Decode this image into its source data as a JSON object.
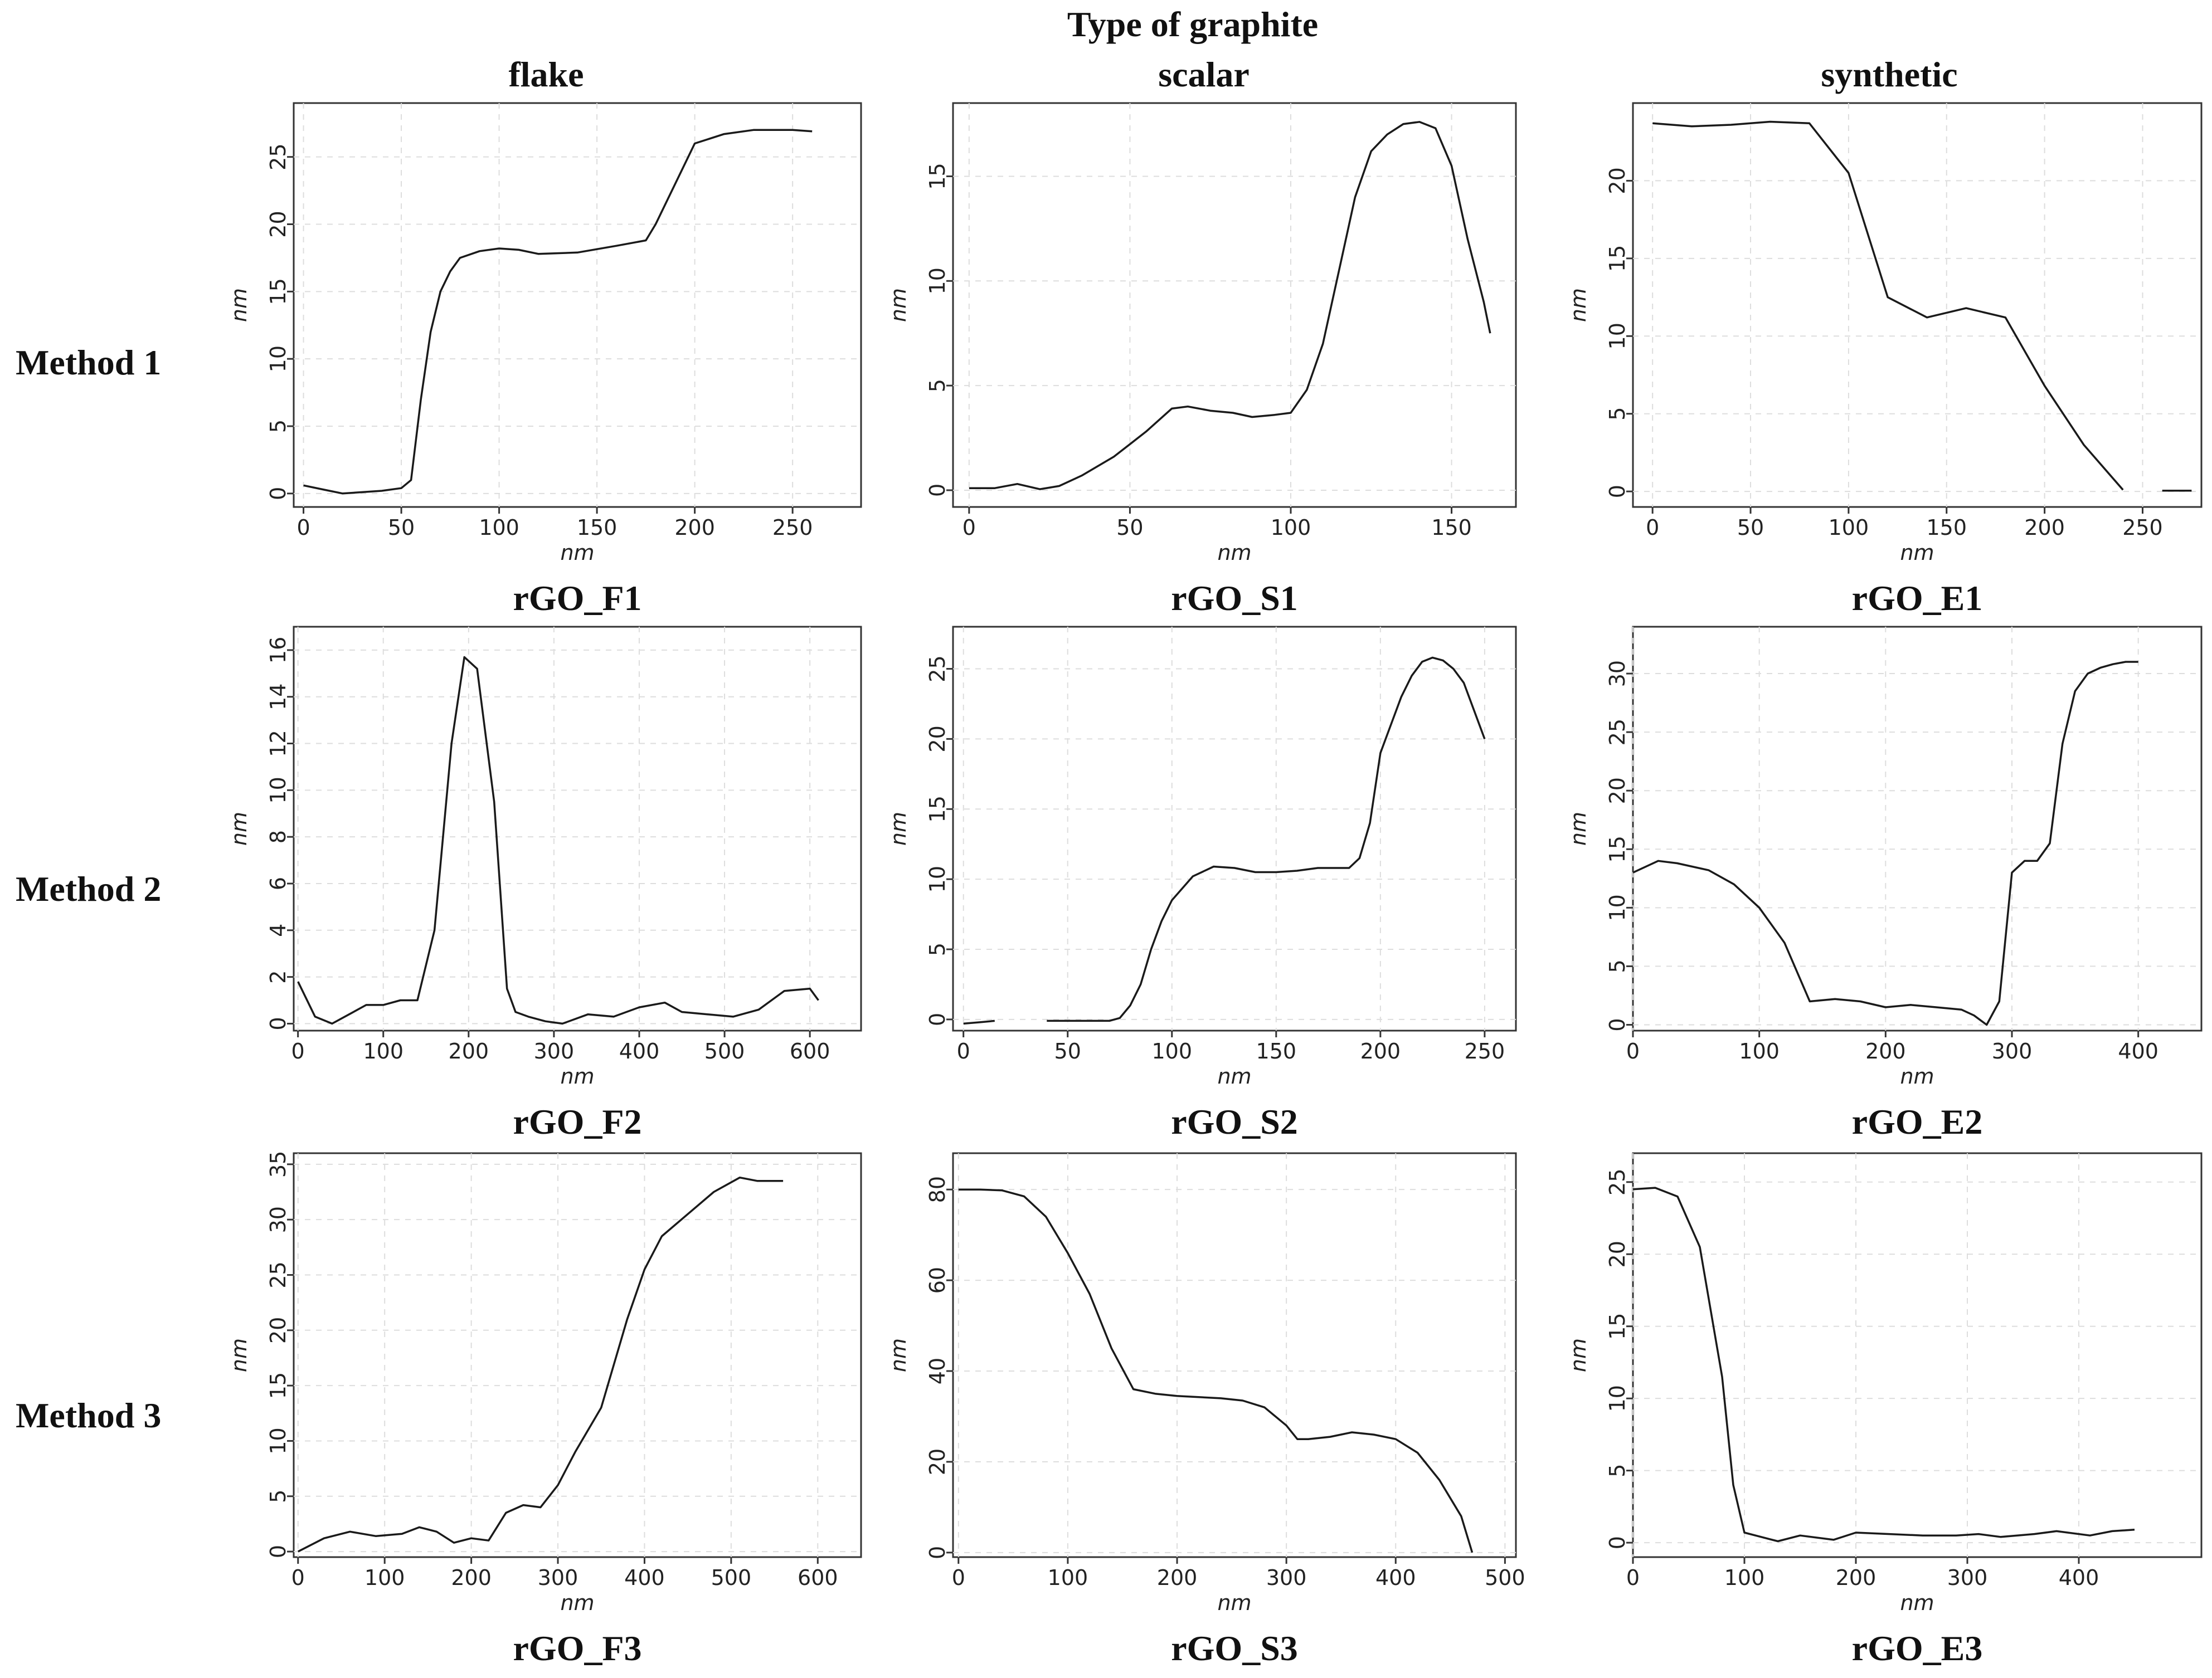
{
  "figure": {
    "column_header": "Type of graphite",
    "columns": [
      "flake",
      "scalar",
      "synthetic"
    ],
    "rows": [
      "Method 1",
      "Method 2",
      "Method 3"
    ],
    "line_color": "#1a1a1a"
  },
  "chart_data": [
    {
      "type": "line",
      "sample": "rGO_F1",
      "xlabel": "nm",
      "ylabel": "nm",
      "xlim": [
        -5,
        285
      ],
      "ylim": [
        -1,
        29
      ],
      "xticks": [
        0,
        50,
        100,
        150,
        200,
        250
      ],
      "yticks": [
        0,
        5,
        10,
        15,
        20,
        25
      ],
      "x": [
        0,
        10,
        20,
        30,
        40,
        50,
        55,
        60,
        65,
        70,
        75,
        80,
        90,
        100,
        110,
        120,
        140,
        160,
        175,
        180,
        190,
        200,
        215,
        230,
        250,
        260
      ],
      "y": [
        0.6,
        0.3,
        0,
        0.1,
        0.2,
        0.4,
        1,
        7,
        12,
        15,
        16.5,
        17.5,
        18,
        18.2,
        18.1,
        17.8,
        17.9,
        18.4,
        18.8,
        20,
        23,
        26,
        26.7,
        27,
        27,
        26.9
      ]
    },
    {
      "type": "line",
      "sample": "rGO_S1",
      "xlabel": "nm",
      "ylabel": "nm",
      "xlim": [
        -5,
        170
      ],
      "ylim": [
        -0.8,
        18.5
      ],
      "xticks": [
        0,
        50,
        100,
        150
      ],
      "yticks": [
        0,
        5,
        10,
        15
      ],
      "x": [
        0,
        8,
        15,
        22,
        28,
        35,
        45,
        55,
        63,
        68,
        75,
        82,
        88,
        95,
        100,
        105,
        110,
        115,
        120,
        125,
        130,
        135,
        140,
        145,
        150,
        155,
        160,
        162
      ],
      "y": [
        0.1,
        0.1,
        0.3,
        0.05,
        0.2,
        0.7,
        1.6,
        2.8,
        3.9,
        4.0,
        3.8,
        3.7,
        3.5,
        3.6,
        3.7,
        4.8,
        7.0,
        10.5,
        14.0,
        16.2,
        17.0,
        17.5,
        17.6,
        17.3,
        15.5,
        12,
        9,
        7.5
      ]
    },
    {
      "type": "line",
      "sample": "rGO_E1",
      "xlabel": "nm",
      "ylabel": "nm",
      "xlim": [
        -10,
        280
      ],
      "ylim": [
        -1,
        25
      ],
      "xticks": [
        0,
        50,
        100,
        150,
        200,
        250
      ],
      "yticks": [
        0,
        5,
        10,
        15,
        20
      ],
      "x": [
        0,
        20,
        40,
        60,
        80,
        100,
        120,
        140,
        160,
        180,
        200,
        220,
        240
      ],
      "y": [
        23.7,
        23.5,
        23.6,
        23.8,
        23.7,
        20.5,
        12.5,
        11.2,
        11.8,
        11.2,
        6.8,
        3,
        0.1
      ],
      "x2": [
        260,
        275
      ],
      "y2": [
        0.05,
        0.05
      ]
    },
    {
      "type": "line",
      "sample": "rGO_F2",
      "xlabel": "nm",
      "ylabel": "nm",
      "xlim": [
        -5,
        660
      ],
      "ylim": [
        -0.3,
        17
      ],
      "xticks": [
        0,
        100,
        200,
        300,
        400,
        500,
        600
      ],
      "yticks": [
        0,
        2,
        4,
        6,
        8,
        10,
        12,
        14,
        16
      ],
      "x": [
        0,
        20,
        40,
        60,
        80,
        100,
        120,
        140,
        160,
        180,
        195,
        210,
        230,
        245,
        255,
        270,
        290,
        310,
        340,
        370,
        400,
        430,
        450,
        480,
        510,
        540,
        570,
        600,
        610
      ],
      "y": [
        1.8,
        0.3,
        0,
        0.4,
        0.8,
        0.8,
        1.0,
        1.0,
        4.0,
        12.0,
        15.7,
        15.2,
        9.5,
        1.5,
        0.5,
        0.3,
        0.1,
        0,
        0.4,
        0.3,
        0.7,
        0.9,
        0.5,
        0.4,
        0.3,
        0.6,
        1.4,
        1.5,
        1.0
      ]
    },
    {
      "type": "line",
      "sample": "rGO_S2",
      "xlabel": "nm",
      "ylabel": "nm",
      "xlim": [
        -5,
        265
      ],
      "ylim": [
        -0.8,
        28
      ],
      "xticks": [
        0,
        50,
        100,
        150,
        200,
        250
      ],
      "yticks": [
        0,
        5,
        10,
        15,
        20,
        25
      ],
      "x": [
        0,
        8,
        15
      ],
      "y": [
        -0.3,
        -0.2,
        -0.1
      ],
      "x2": [
        40,
        50,
        60,
        70,
        75,
        80,
        85,
        90,
        95,
        100,
        110,
        120,
        130,
        140,
        150,
        160,
        170,
        180,
        185,
        190,
        195,
        200,
        205,
        210,
        215,
        220,
        225,
        230,
        235,
        240,
        245,
        250
      ],
      "y2": [
        -0.1,
        -0.1,
        -0.1,
        -0.1,
        0.1,
        1,
        2.5,
        5,
        7,
        8.5,
        10.2,
        10.9,
        10.8,
        10.5,
        10.5,
        10.6,
        10.8,
        10.8,
        10.8,
        11.5,
        14,
        19,
        21,
        23,
        24.5,
        25.5,
        25.8,
        25.6,
        25,
        24,
        22,
        20
      ]
    },
    {
      "type": "line",
      "sample": "rGO_E2",
      "xlabel": "nm",
      "ylabel": "nm",
      "xlim": [
        0,
        450
      ],
      "ylim": [
        -0.5,
        34
      ],
      "xticks": [
        0,
        100,
        200,
        300,
        400
      ],
      "yticks": [
        0,
        5,
        10,
        15,
        20,
        25,
        30
      ],
      "x": [
        0,
        20,
        35,
        60,
        80,
        100,
        120,
        140,
        160,
        180,
        200,
        220,
        240,
        260,
        270,
        280,
        290,
        300,
        310,
        320,
        330,
        340,
        350,
        360,
        370,
        380,
        390,
        400
      ],
      "y": [
        13,
        14,
        13.8,
        13.2,
        12,
        10,
        7,
        2,
        2.2,
        2,
        1.5,
        1.7,
        1.5,
        1.3,
        0.8,
        0,
        2,
        13,
        14,
        14,
        15.5,
        24,
        28.5,
        30,
        30.5,
        30.8,
        31,
        31
      ]
    },
    {
      "type": "line",
      "sample": "rGO_F3",
      "xlabel": "nm",
      "ylabel": "nm",
      "xlim": [
        -5,
        650
      ],
      "ylim": [
        -0.5,
        36
      ],
      "xticks": [
        0,
        100,
        200,
        300,
        400,
        500,
        600
      ],
      "yticks": [
        0,
        5,
        10,
        15,
        20,
        25,
        30,
        35
      ],
      "x": [
        0,
        30,
        60,
        90,
        120,
        140,
        160,
        180,
        200,
        220,
        240,
        260,
        280,
        300,
        320,
        350,
        380,
        400,
        420,
        450,
        480,
        510,
        530,
        560
      ],
      "y": [
        0,
        1.2,
        1.8,
        1.4,
        1.6,
        2.2,
        1.8,
        0.8,
        1.2,
        1.0,
        3.5,
        4.2,
        4.0,
        6.0,
        9.0,
        13.0,
        21.0,
        25.5,
        28.5,
        30.5,
        32.5,
        33.8,
        33.5,
        33.5
      ]
    },
    {
      "type": "line",
      "sample": "rGO_S3",
      "xlabel": "nm",
      "ylabel": "nm",
      "xlim": [
        -5,
        510
      ],
      "ylim": [
        -1,
        88
      ],
      "xticks": [
        0,
        100,
        200,
        300,
        400,
        500
      ],
      "yticks": [
        0,
        20,
        40,
        60,
        80
      ],
      "x": [
        0,
        20,
        40,
        60,
        80,
        100,
        120,
        140,
        160,
        180,
        200,
        240,
        260,
        280,
        300,
        310,
        320,
        340,
        360,
        380,
        400,
        420,
        440,
        460,
        470
      ],
      "y": [
        80,
        80,
        79.8,
        78.5,
        74,
        66,
        57,
        45,
        36,
        35,
        34.5,
        34,
        33.5,
        32,
        28,
        25,
        25,
        25.5,
        26.5,
        26,
        25,
        22,
        16,
        8,
        0
      ]
    },
    {
      "type": "line",
      "sample": "rGO_E3",
      "xlabel": "nm",
      "ylabel": "nm",
      "xlim": [
        0,
        510
      ],
      "ylim": [
        -1,
        27
      ],
      "xticks": [
        0,
        100,
        200,
        300,
        400
      ],
      "yticks": [
        0,
        5,
        10,
        15,
        20,
        25
      ],
      "x": [
        0,
        20,
        40,
        60,
        80,
        90,
        100,
        110,
        130,
        150,
        180,
        200,
        230,
        260,
        290,
        310,
        330,
        360,
        380,
        410,
        430,
        450
      ],
      "y": [
        24.5,
        24.6,
        24,
        20.5,
        11.5,
        4,
        0.7,
        0.5,
        0.1,
        0.5,
        0.2,
        0.7,
        0.6,
        0.5,
        0.5,
        0.6,
        0.4,
        0.6,
        0.8,
        0.5,
        0.8,
        0.9
      ]
    }
  ]
}
